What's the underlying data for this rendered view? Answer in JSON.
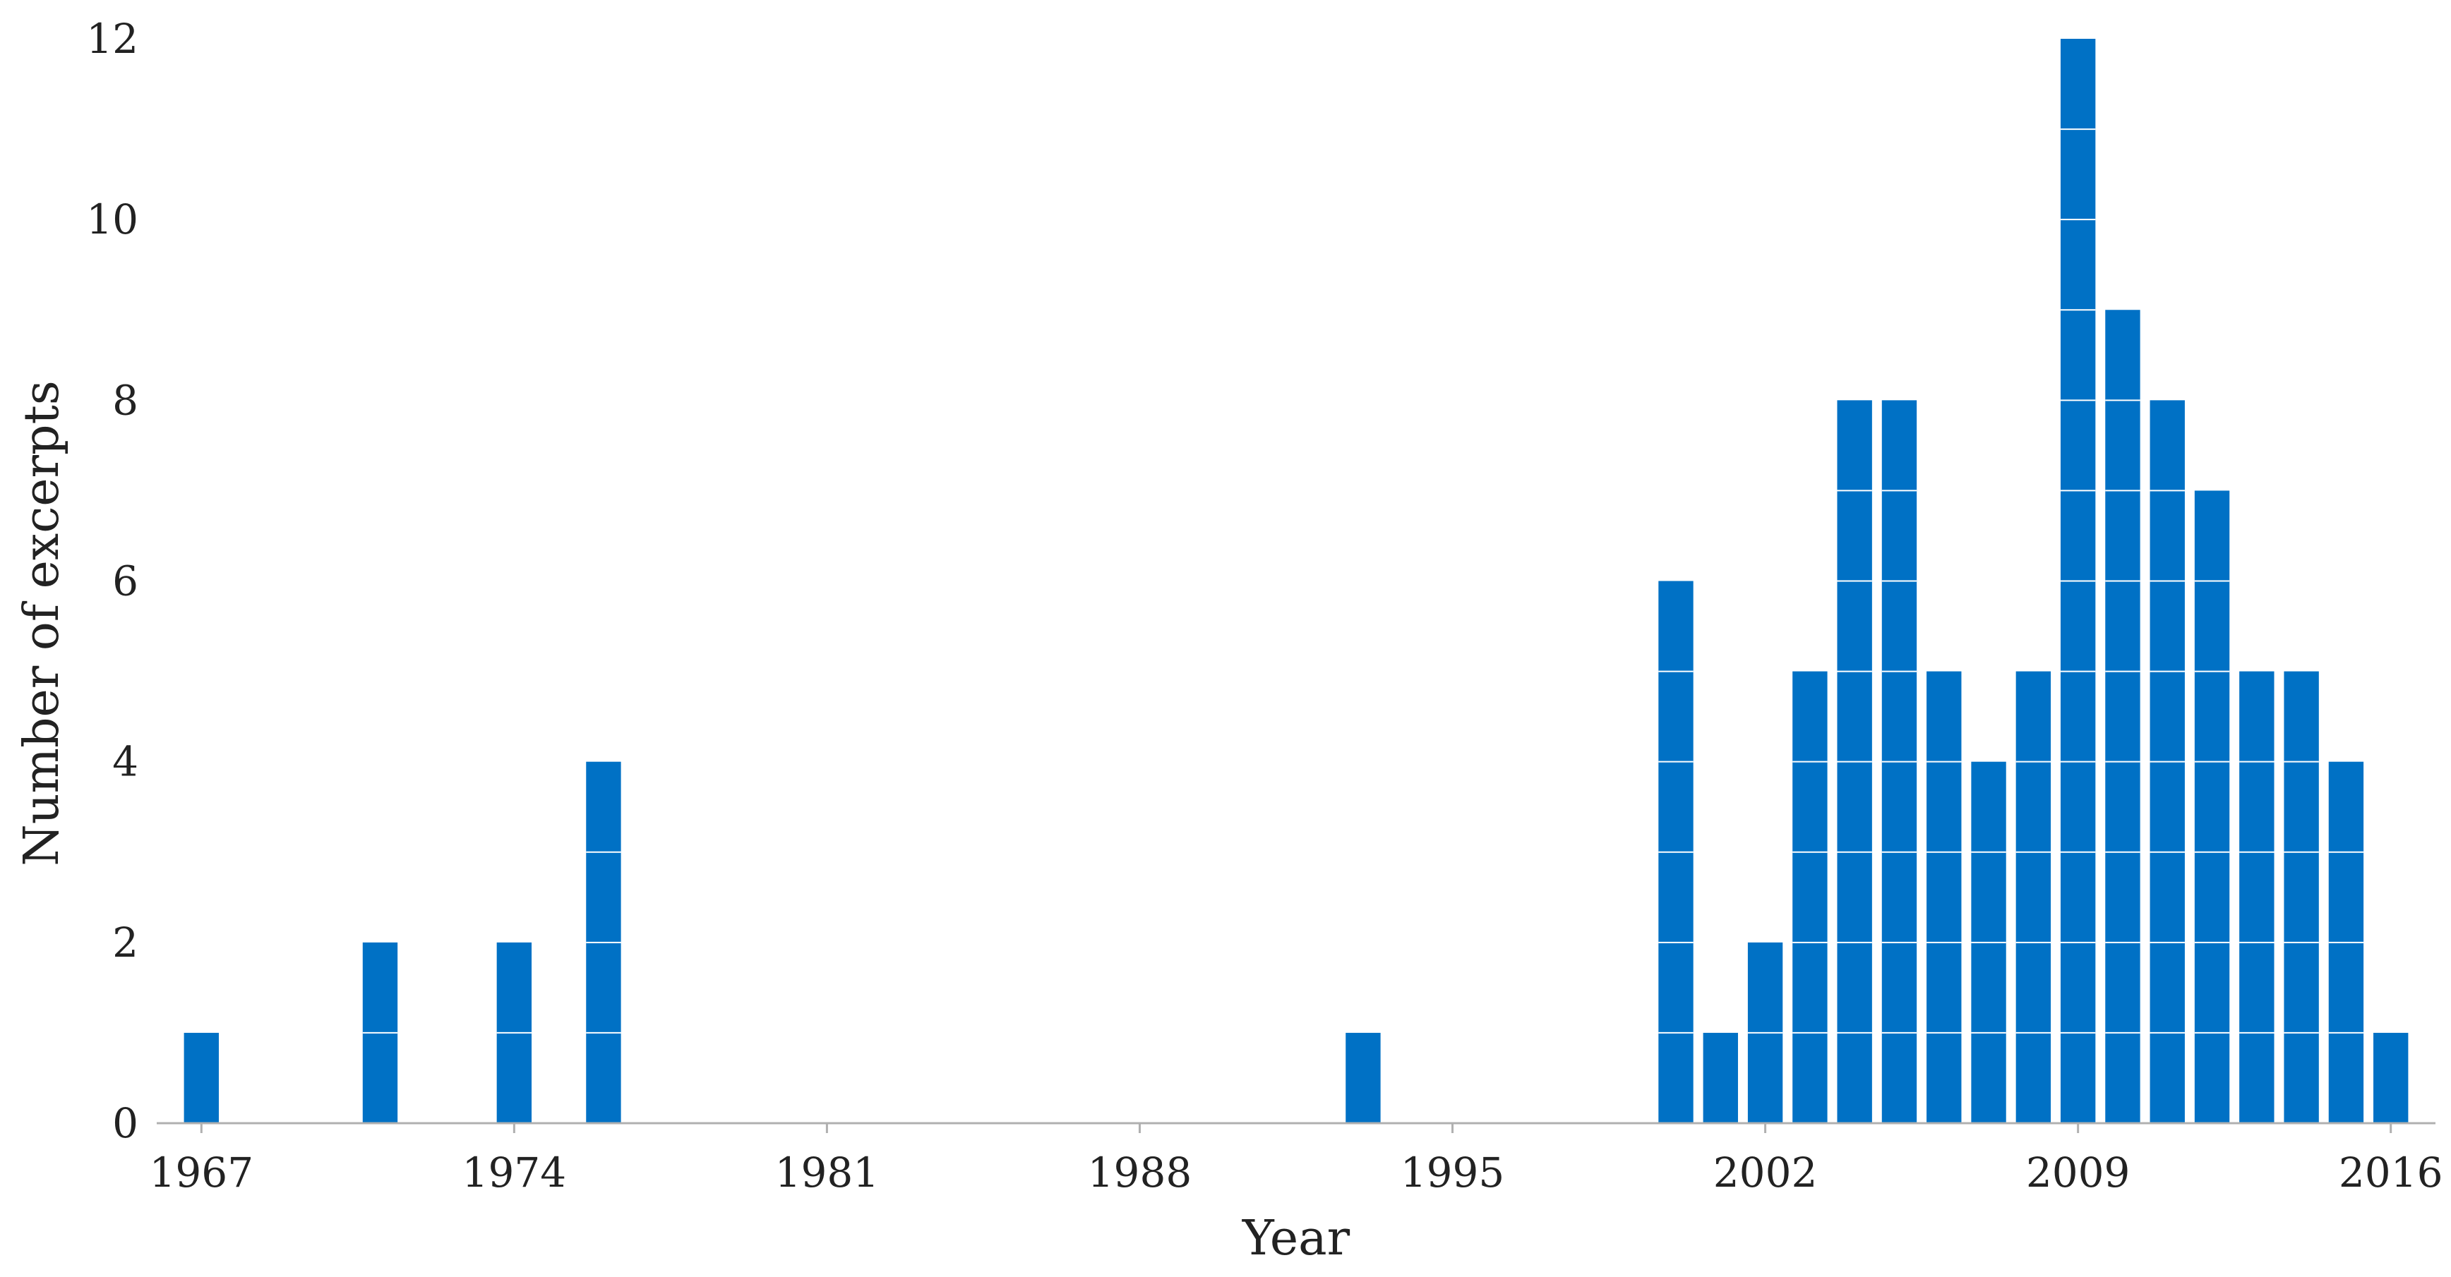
{
  "chart_data": {
    "type": "bar",
    "xlabel": "Year",
    "ylabel": "Number of excerpts",
    "xlim": [
      1966,
      2017
    ],
    "ylim": [
      0,
      12
    ],
    "xticks": [
      1967,
      1974,
      1981,
      1988,
      1995,
      2002,
      2009,
      2016
    ],
    "yticks": [
      0,
      2,
      4,
      6,
      8,
      10,
      12
    ],
    "grid": false,
    "bar_color": "#0071c5",
    "bar_segment_line_color": "#ffffff",
    "axis_color": "#b0b0b0",
    "x": [
      1967,
      1971,
      1974,
      1976,
      1993,
      2000,
      2001,
      2002,
      2003,
      2004,
      2005,
      2006,
      2007,
      2008,
      2009,
      2010,
      2011,
      2012,
      2013,
      2014,
      2015,
      2016
    ],
    "values": [
      1,
      2,
      2,
      4,
      1,
      6,
      1,
      2,
      5,
      8,
      8,
      5,
      4,
      5,
      12,
      9,
      8,
      7,
      5,
      5,
      4,
      1
    ]
  }
}
